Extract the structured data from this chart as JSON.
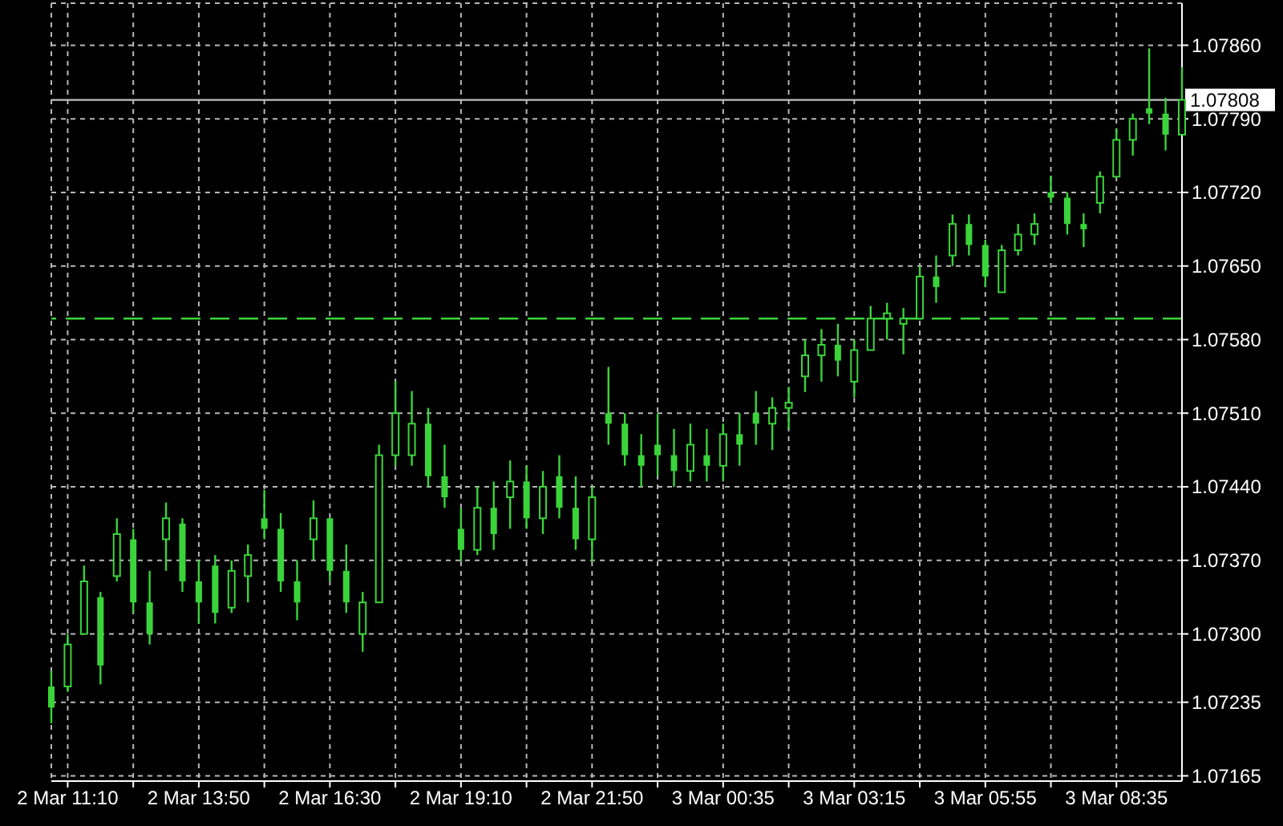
{
  "chart_data": {
    "type": "candlestick",
    "color": "#3ad43a",
    "grid": true,
    "ylim": [
      1.0716,
      1.079
    ],
    "yticks": [
      {
        "value": 1.07165,
        "label": "1.07165"
      },
      {
        "value": 1.07235,
        "label": "1.07235"
      },
      {
        "value": 1.073,
        "label": "1.07300"
      },
      {
        "value": 1.0737,
        "label": "1.07370"
      },
      {
        "value": 1.0744,
        "label": "1.07440"
      },
      {
        "value": 1.0751,
        "label": "1.07510"
      },
      {
        "value": 1.0758,
        "label": "1.07580"
      },
      {
        "value": 1.0765,
        "label": "1.07650"
      },
      {
        "value": 1.0772,
        "label": "1.07720"
      },
      {
        "value": 1.0779,
        "label": "1.07790"
      },
      {
        "value": 1.0786,
        "label": "1.07860"
      }
    ],
    "ref_lines": [
      {
        "axis": "y",
        "value": 1.07808,
        "label": "1.07808",
        "color": "#c0c0c0",
        "line_style": "solid"
      },
      {
        "axis": "y",
        "value": 1.076,
        "color": "#3ad43a",
        "line_style": "dashed"
      }
    ],
    "categories": [
      null,
      "2 Mar 11:10",
      null,
      null,
      null,
      null,
      null,
      null,
      null,
      "2 Mar 13:50",
      null,
      null,
      null,
      null,
      null,
      null,
      null,
      "2 Mar 16:30",
      null,
      null,
      null,
      null,
      null,
      null,
      null,
      "2 Mar 19:10",
      null,
      null,
      null,
      null,
      null,
      null,
      null,
      "2 Mar 21:50",
      null,
      null,
      null,
      null,
      null,
      null,
      null,
      "3 Mar 00:35",
      null,
      null,
      null,
      null,
      null,
      null,
      null,
      "3 Mar 03:15",
      null,
      null,
      null,
      null,
      null,
      null,
      null,
      "3 Mar 05:55",
      null,
      null,
      null,
      null,
      null,
      null,
      null,
      "3 Mar 08:35",
      null,
      null,
      null,
      null
    ],
    "ohlc": [
      [
        1.0725,
        1.07265,
        1.07215,
        1.0723
      ],
      [
        1.0725,
        1.073,
        1.07245,
        1.0729
      ],
      [
        1.073,
        1.07365,
        1.073,
        1.0735
      ],
      [
        1.07335,
        1.0734,
        1.07252,
        1.0727
      ],
      [
        1.07355,
        1.0741,
        1.0735,
        1.07395
      ],
      [
        1.0739,
        1.074,
        1.0732,
        1.0733
      ],
      [
        1.0733,
        1.0736,
        1.0729,
        1.073
      ],
      [
        1.0739,
        1.07425,
        1.0736,
        1.0741
      ],
      [
        1.07405,
        1.0741,
        1.0734,
        1.0735
      ],
      [
        1.0735,
        1.0737,
        1.0731,
        1.0733
      ],
      [
        1.07365,
        1.07375,
        1.0731,
        1.0732
      ],
      [
        1.07325,
        1.0737,
        1.0732,
        1.0736
      ],
      [
        1.07355,
        1.07385,
        1.0733,
        1.07375
      ],
      [
        1.0741,
        1.07437,
        1.0739,
        1.074
      ],
      [
        1.074,
        1.07415,
        1.0734,
        1.0735
      ],
      [
        1.0735,
        1.0737,
        1.07313,
        1.0733
      ],
      [
        1.0739,
        1.07427,
        1.0737,
        1.0741
      ],
      [
        1.0741,
        1.0741,
        1.0735,
        1.0736
      ],
      [
        1.0736,
        1.07385,
        1.0732,
        1.0733
      ],
      [
        1.073,
        1.0734,
        1.07283,
        1.0733
      ],
      [
        1.0733,
        1.0748,
        1.0733,
        1.0747
      ],
      [
        1.0747,
        1.0754,
        1.0746,
        1.0751
      ],
      [
        1.0747,
        1.07531,
        1.0746,
        1.075
      ],
      [
        1.075,
        1.07515,
        1.0744,
        1.0745
      ],
      [
        1.0745,
        1.0748,
        1.0742,
        1.0743
      ],
      [
        1.074,
        1.0742,
        1.07369,
        1.0738
      ],
      [
        1.0738,
        1.0744,
        1.07375,
        1.0742
      ],
      [
        1.0742,
        1.07445,
        1.0738,
        1.07395
      ],
      [
        1.0743,
        1.07465,
        1.074,
        1.07445
      ],
      [
        1.07445,
        1.0746,
        1.074,
        1.0741
      ],
      [
        1.0741,
        1.07455,
        1.07395,
        1.0744
      ],
      [
        1.0745,
        1.0747,
        1.0741,
        1.0742
      ],
      [
        1.0742,
        1.0745,
        1.0738,
        1.0739
      ],
      [
        1.0739,
        1.0744,
        1.07369,
        1.0743
      ],
      [
        1.0751,
        1.07554,
        1.0748,
        1.075
      ],
      [
        1.075,
        1.0751,
        1.0746,
        1.0747
      ],
      [
        1.0747,
        1.0749,
        1.0744,
        1.0746
      ],
      [
        1.0748,
        1.0751,
        1.0745,
        1.0747
      ],
      [
        1.0747,
        1.07495,
        1.0744,
        1.07455
      ],
      [
        1.07455,
        1.075,
        1.07445,
        1.0748
      ],
      [
        1.0747,
        1.07495,
        1.07445,
        1.0746
      ],
      [
        1.0746,
        1.075,
        1.07445,
        1.0749
      ],
      [
        1.0749,
        1.0751,
        1.0746,
        1.0748
      ],
      [
        1.0751,
        1.07531,
        1.0748,
        1.075
      ],
      [
        1.075,
        1.07525,
        1.07475,
        1.07515
      ],
      [
        1.07515,
        1.07535,
        1.07495,
        1.0752
      ],
      [
        1.07545,
        1.0758,
        1.0753,
        1.07565
      ],
      [
        1.07565,
        1.0759,
        1.0754,
        1.07575
      ],
      [
        1.07575,
        1.07595,
        1.07545,
        1.0756
      ],
      [
        1.0754,
        1.0758,
        1.07525,
        1.0757
      ],
      [
        1.0757,
        1.07612,
        1.0757,
        1.076
      ],
      [
        1.076,
        1.07615,
        1.0758,
        1.07605
      ],
      [
        1.07595,
        1.0761,
        1.07566,
        1.076
      ],
      [
        1.076,
        1.0765,
        1.076,
        1.0764
      ],
      [
        1.0764,
        1.0766,
        1.07615,
        1.0763
      ],
      [
        1.0766,
        1.07699,
        1.0765,
        1.0769
      ],
      [
        1.0769,
        1.07699,
        1.0766,
        1.0767
      ],
      [
        1.0767,
        1.07675,
        1.0763,
        1.0764
      ],
      [
        1.07625,
        1.0767,
        1.07625,
        1.07665
      ],
      [
        1.07665,
        1.0769,
        1.0766,
        1.0768
      ],
      [
        1.0768,
        1.077,
        1.0767,
        1.0769
      ],
      [
        1.0772,
        1.07736,
        1.0771,
        1.07715
      ],
      [
        1.07715,
        1.0772,
        1.0768,
        1.0769
      ],
      [
        1.0769,
        1.077,
        1.07668,
        1.07685
      ],
      [
        1.0771,
        1.0774,
        1.077,
        1.07735
      ],
      [
        1.07735,
        1.0778,
        1.07735,
        1.0777
      ],
      [
        1.0777,
        1.07795,
        1.07755,
        1.0779
      ],
      [
        1.078,
        1.07857,
        1.07785,
        1.07795
      ],
      [
        1.07795,
        1.0781,
        1.0776,
        1.07775
      ],
      [
        1.07775,
        1.07839,
        1.07775,
        1.07808
      ]
    ]
  }
}
